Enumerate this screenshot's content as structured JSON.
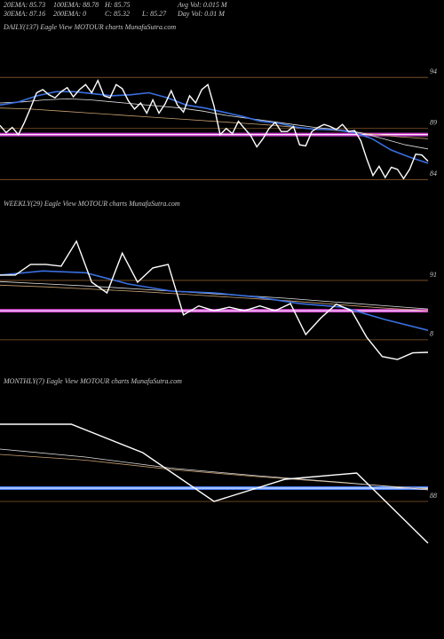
{
  "header": [
    "20EMA: 85.73",
    "100EMA: 88.78",
    "H: 85.75",
    "Avg Vol: 0.015 M",
    "30EMA: 87.16",
    "200EMA: 0",
    "C: 85.32",
    "L: 85.27",
    "Day Vol: 0.01 M"
  ],
  "chart_data": [
    {
      "type": "line",
      "title": "DAILY(137) Eagle  View  MOTOUR charts MunafaSutra.com",
      "ylim": [
        82.9,
        98.1
      ],
      "yticks": [
        94,
        89,
        84
      ],
      "grid": true,
      "reference_lines": [
        {
          "value": 88.4,
          "color": "#d040d0"
        }
      ],
      "series": [
        {
          "name": "Close",
          "color": "#ffffff",
          "values": [
            89.3,
            88.6,
            89.1,
            88.4,
            89.6,
            91.0,
            92.5,
            92.8,
            92.3,
            92.0,
            92.6,
            93.0,
            92.1,
            92.8,
            93.3,
            92.5,
            93.7,
            92.2,
            92.0,
            93.3,
            92.9,
            91.7,
            90.9,
            91.5,
            90.5,
            91.8,
            90.5,
            91.4,
            92.7,
            91.3,
            90.6,
            92.2,
            91.5,
            92.8,
            93.3,
            91.2,
            88.4,
            89.0,
            88.5,
            89.7,
            89.0,
            88.3,
            87.2,
            88.0,
            89.0,
            89.6,
            88.7,
            88.7,
            89.2,
            87.4,
            87.3,
            88.7,
            89.1,
            89.4,
            89.2,
            88.9,
            89.4,
            88.7,
            88.8,
            87.8,
            86.0,
            84.4,
            85.3,
            84.2,
            85.2,
            85.0,
            84.1,
            85.0,
            86.5,
            86.4,
            85.8
          ]
        },
        {
          "name": "20EMA",
          "color": "#3a6fe0",
          "values": [
            91.3,
            91.6,
            92.2,
            92.6,
            92.6,
            92.4,
            92.2,
            92.3,
            92.5,
            92.0,
            91.3,
            91.0,
            90.6,
            90.2,
            89.7,
            89.5,
            89.1,
            88.9,
            88.9,
            88.6,
            88.0,
            86.9,
            86.2,
            85.6
          ]
        },
        {
          "name": "30EMA",
          "color": "#e0e0e0",
          "values": [
            91.5,
            91.6,
            91.8,
            91.9,
            91.8,
            91.6,
            91.4,
            91.2,
            91.0,
            90.7,
            90.3,
            90.0,
            89.7,
            89.4,
            89.1,
            88.9,
            88.6,
            88.0,
            87.4,
            87.0
          ]
        },
        {
          "name": "100EMA",
          "color": "#c8a070",
          "values": [
            91.0,
            90.9,
            90.7,
            90.5,
            90.3,
            90.1,
            89.9,
            89.7,
            89.5,
            89.3,
            89.0,
            88.8,
            88.5,
            88.2,
            88.0
          ]
        }
      ]
    },
    {
      "type": "line",
      "title": "WEEKLY(29) Eagle  View  MOTOUR charts MunafaSutra.com",
      "ylim": [
        77.7,
        101.6
      ],
      "yticks": [
        91,
        {
          "value": 81,
          "label": "8"
        }
      ],
      "grid": true,
      "reference_lines": [
        {
          "value": 85.9,
          "color": "#d040d0"
        }
      ],
      "series": [
        {
          "name": "Close",
          "color": "#ffffff",
          "values": [
            91.9,
            91.9,
            93.7,
            93.7,
            93.4,
            97.6,
            90.7,
            88.9,
            95.6,
            90.7,
            93.1,
            93.7,
            85.2,
            86.7,
            85.9,
            86.5,
            85.9,
            86.7,
            85.9,
            87.1,
            81.9,
            84.7,
            87.0,
            85.9,
            81.4,
            78.2,
            77.7,
            78.8,
            78.9
          ]
        },
        {
          "name": "20EMA",
          "color": "#3a6fe0",
          "values": [
            91.9,
            92.6,
            92.3,
            90.4,
            89.2,
            88.9,
            88.2,
            87.1,
            86.5,
            84.4,
            82.6
          ]
        },
        {
          "name": "30EMA",
          "color": "#e0e0e0",
          "values": [
            90.8,
            90.4,
            90.0,
            89.5,
            89.0,
            88.5,
            88.0,
            87.4,
            86.8,
            86.2
          ]
        },
        {
          "name": "100EMA",
          "color": "#c8a070",
          "values": [
            90.2,
            89.9,
            89.5,
            89.1,
            88.6,
            88.1,
            87.6,
            87.0,
            86.4,
            85.9
          ]
        }
      ]
    },
    {
      "type": "line",
      "title": "MONTHLY(7) Eagle  View  MOTOUR charts MunafaSutra.com",
      "ylim": [
        78,
        113
      ],
      "yticks": [
        88
      ],
      "grid": true,
      "reference_lines": [
        {
          "value": 91,
          "color": "#4a80ff"
        }
      ],
      "series": [
        {
          "name": "Close",
          "color": "#ffffff",
          "values": [
            105.4,
            105.4,
            99.0,
            88.0,
            93.0,
            94.4,
            78.6
          ]
        },
        {
          "name": "20EMA",
          "color": "#e0e0e0",
          "values": [
            99.8,
            98.0,
            95.5,
            93.8,
            92.3,
            90.6
          ]
        },
        {
          "name": "30EMA",
          "color": "#c8a070",
          "values": [
            98.6,
            97.3,
            95.2,
            93.6,
            92.2,
            90.8
          ]
        }
      ]
    }
  ]
}
